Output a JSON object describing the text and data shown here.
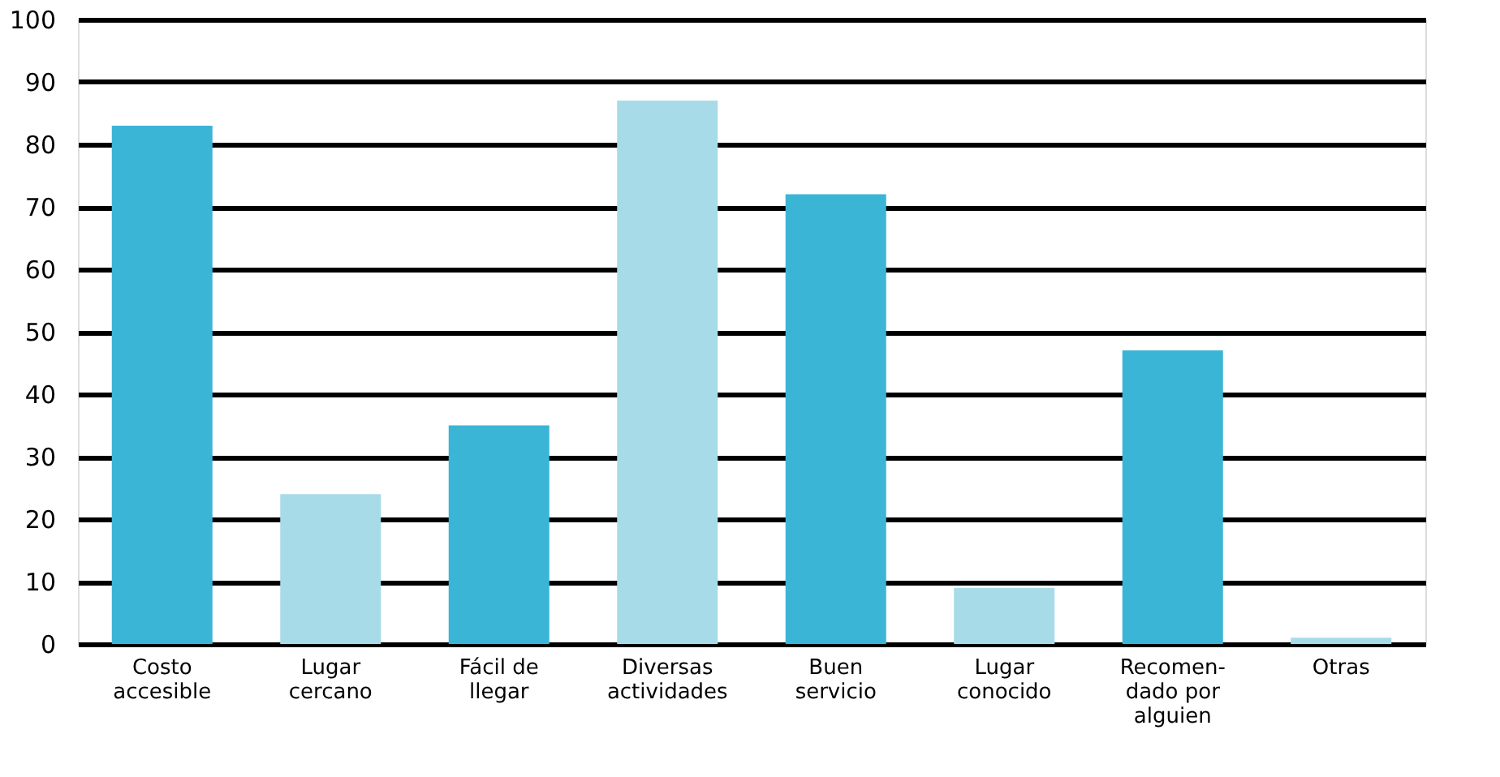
{
  "chart_data": {
    "type": "bar",
    "categories": [
      "Costo\naccesible",
      "Lugar\ncercano",
      "Fácil de\nllegar",
      "Diversas\nactividades",
      "Buen\nservicio",
      "Lugar\nconocido",
      "Recomen-\ndado por\nalguien",
      "Otras"
    ],
    "values": [
      83,
      24,
      35,
      87,
      72,
      9,
      47,
      1
    ],
    "colors": [
      "#3bb5d6",
      "#a8dbe8",
      "#3bb5d6",
      "#a8dbe8",
      "#3bb5d6",
      "#a8dbe8",
      "#3bb5d6",
      "#a8dbe8"
    ],
    "ylim": [
      0,
      100
    ],
    "yticks": [
      0,
      10,
      20,
      30,
      40,
      50,
      60,
      70,
      80,
      90,
      100
    ],
    "grid": "y"
  }
}
